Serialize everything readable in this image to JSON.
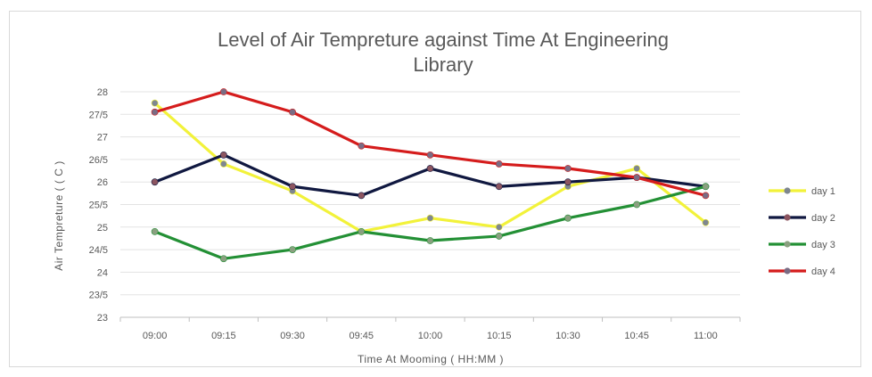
{
  "chart_data": {
    "type": "line",
    "title": "Level of Air Tempreture against Time At Engineering Library",
    "title_lines": [
      "Level of Air Tempreture against Time At Engineering",
      "Library"
    ],
    "xlabel": "Time At Mooming ( HH:MM )",
    "ylabel": "Air Tempreture ( ( C )",
    "categories": [
      "09:00",
      "09:15",
      "09:30",
      "09:45",
      "10:00",
      "10:15",
      "10:30",
      "10:45",
      "11:00"
    ],
    "ylim": [
      23,
      28
    ],
    "yticks": [
      23,
      23.5,
      24,
      24.5,
      25,
      25.5,
      26,
      26.5,
      27,
      27.5,
      28
    ],
    "ytick_labels": [
      "23",
      "23/5",
      "24",
      "24/5",
      "25",
      "25/5",
      "26",
      "26/5",
      "27",
      "27/5",
      "28"
    ],
    "grid": true,
    "legend_position": "right",
    "series": [
      {
        "name": "day 1",
        "color": "#f2f23a",
        "marker_color": "#7f8790",
        "values": [
          27.75,
          26.4,
          25.8,
          24.9,
          25.2,
          25.0,
          25.9,
          26.3,
          25.1
        ]
      },
      {
        "name": "day 2",
        "color": "#101840",
        "marker_color": "#8c5560",
        "values": [
          26.0,
          26.6,
          25.9,
          25.7,
          26.3,
          25.9,
          26.0,
          26.1,
          25.9
        ]
      },
      {
        "name": "day 3",
        "color": "#239035",
        "marker_color": "#8aa080",
        "values": [
          24.9,
          24.3,
          24.5,
          24.9,
          24.7,
          24.8,
          25.2,
          25.5,
          25.9
        ]
      },
      {
        "name": "day 4",
        "color": "#d51c1c",
        "marker_color": "#7a6c84",
        "values": [
          27.55,
          28.0,
          27.55,
          26.8,
          26.6,
          26.4,
          26.3,
          26.1,
          25.7
        ]
      }
    ]
  }
}
